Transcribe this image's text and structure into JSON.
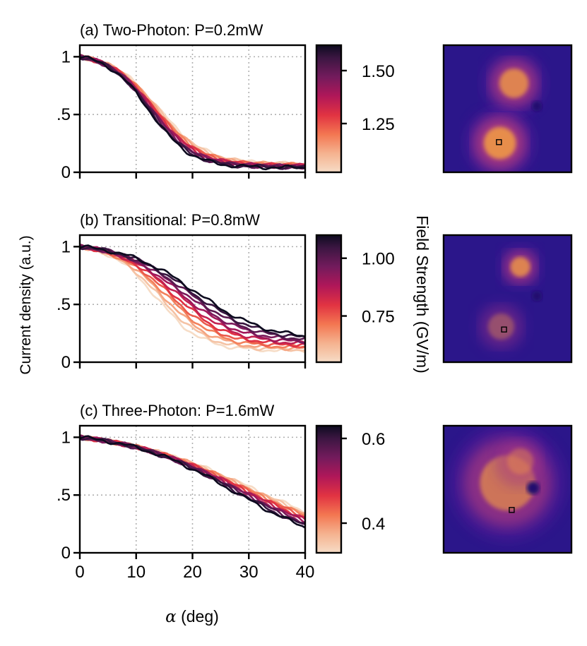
{
  "figure": {
    "ylabel": "Current density (a.u.)",
    "xlabel_var": "α",
    "xlabel_unit": " (deg)",
    "colorbar_label": "Field Strength (GV/m)"
  },
  "chart_data": [
    {
      "type": "line",
      "title": "(a) Two-Photon: P=0.2mW",
      "xlim": [
        0,
        40
      ],
      "ylim": [
        0,
        1.1
      ],
      "x_ticks": [
        0,
        10,
        20,
        30,
        40
      ],
      "y_tick_values": [
        0,
        0.5,
        1
      ],
      "y_tick_labels": [
        "0",
        ".5",
        "1"
      ],
      "grid": true,
      "colorbar": {
        "min": 1.02,
        "max": 1.62,
        "ticks": [
          1.25,
          1.5
        ],
        "tick_labels": [
          "1.25",
          "1.50"
        ]
      },
      "series_model": {
        "n": 12,
        "c_min": 1.02,
        "c_max": 1.62,
        "mid_lo": 14.0,
        "mid_hi": 12.3,
        "w_lo": 4.2,
        "w_hi": 3.7,
        "base_lo": 0.07,
        "base_hi": 0.04
      },
      "image": {
        "spots": [
          {
            "u": 0.55,
            "v": 0.3,
            "r": 0.19,
            "a": 0.9
          },
          {
            "u": 0.44,
            "v": 0.77,
            "r": 0.21,
            "a": 1.0
          }
        ],
        "hole": {
          "u": 0.73,
          "v": 0.48,
          "r": 0.04
        },
        "marker": {
          "u": 0.43,
          "v": 0.76
        }
      }
    },
    {
      "type": "line",
      "title": "(b) Transitional: P=0.8mW",
      "xlim": [
        0,
        40
      ],
      "ylim": [
        0,
        1.1
      ],
      "x_ticks": [
        0,
        10,
        20,
        30,
        40
      ],
      "y_tick_values": [
        0,
        0.5,
        1
      ],
      "y_tick_labels": [
        "0",
        ".5",
        "1"
      ],
      "grid": true,
      "colorbar": {
        "min": 0.55,
        "max": 1.1,
        "ticks": [
          0.75,
          1.0
        ],
        "tick_labels": [
          "0.75",
          "1.00"
        ]
      },
      "series_model": {
        "n": 12,
        "c_min": 0.55,
        "c_max": 1.1,
        "mid_lo": 13.5,
        "mid_hi": 20.5,
        "w_lo": 4.0,
        "w_hi": 6.3,
        "base_lo": 0.1,
        "base_hi": 0.19
      },
      "image": {
        "spots": [
          {
            "u": 0.6,
            "v": 0.25,
            "r": 0.13,
            "a": 0.9
          },
          {
            "u": 0.45,
            "v": 0.72,
            "r": 0.17,
            "a": 0.42
          }
        ],
        "hole": {
          "u": 0.73,
          "v": 0.48,
          "r": 0.04
        },
        "marker": {
          "u": 0.47,
          "v": 0.74
        }
      }
    },
    {
      "type": "line",
      "title": "(c) Three-Photon: P=1.6mW",
      "xlim": [
        0,
        40
      ],
      "ylim": [
        0,
        1.1
      ],
      "x_ticks": [
        0,
        10,
        20,
        30,
        40
      ],
      "x_tick_labels": [
        "0",
        "10",
        "20",
        "30",
        "40"
      ],
      "y_tick_values": [
        0,
        0.5,
        1
      ],
      "y_tick_labels": [
        "0",
        ".5",
        "1"
      ],
      "grid": true,
      "colorbar": {
        "min": 0.33,
        "max": 0.63,
        "ticks": [
          0.4,
          0.6
        ],
        "tick_labels": [
          "0.4",
          "0.6"
        ]
      },
      "series_model": {
        "n": 12,
        "c_min": 0.33,
        "c_max": 0.63,
        "mid_lo": 31.5,
        "mid_hi": 27.5,
        "w_lo": 12.0,
        "w_hi": 9.5,
        "base_lo": 0.0,
        "base_hi": 0.0
      },
      "image": {
        "spots": [
          {
            "u": 0.5,
            "v": 0.45,
            "r": 0.36,
            "a": 0.75
          },
          {
            "u": 0.6,
            "v": 0.28,
            "r": 0.17,
            "a": 0.45
          }
        ],
        "hole": {
          "u": 0.7,
          "v": 0.49,
          "r": 0.05
        },
        "marker": {
          "u": 0.53,
          "v": 0.66
        }
      }
    }
  ]
}
